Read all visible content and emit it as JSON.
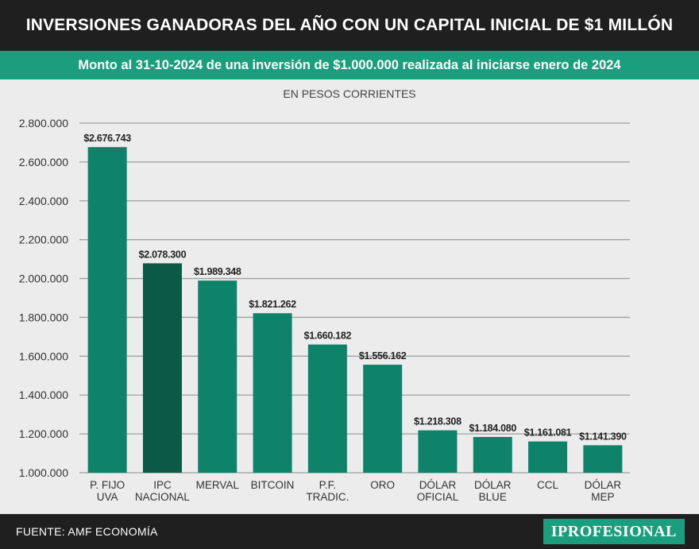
{
  "header": {
    "title": "INVERSIONES GANADORAS DEL AÑO CON UN CAPITAL INICIAL DE $1 MILLÓN",
    "subtitle": "Monto al 31-10-2024 de una inversión de $1.000.000 realizada al iniciarse enero de 2024",
    "unit_label": "EN PESOS CORRIENTES"
  },
  "footer": {
    "source": "FUENTE: AMF ECONOMÍA",
    "brand": "IPROFESIONAL"
  },
  "colors": {
    "bar": "#0f826a",
    "bar_highlight": "#0b5a48",
    "grid": "#a0a0a0",
    "text": "#333333"
  },
  "chart_data": {
    "type": "bar",
    "categories": [
      [
        "P. FIJO",
        "UVA"
      ],
      [
        "IPC",
        "NACIONAL"
      ],
      [
        "MERVAL"
      ],
      [
        "BITCOIN"
      ],
      [
        "P.F.",
        "TRADIC."
      ],
      [
        "ORO"
      ],
      [
        "DÓLAR",
        "OFICIAL"
      ],
      [
        "DÓLAR",
        "BLUE"
      ],
      [
        "CCL"
      ],
      [
        "DÓLAR",
        "MEP"
      ]
    ],
    "values": [
      2676743,
      2078300,
      1989348,
      1821262,
      1660182,
      1556162,
      1218308,
      1184080,
      1161081,
      1141390
    ],
    "data_labels": [
      "$2.676.743",
      "$2.078.300",
      "$1.989.348",
      "$1.821.262",
      "$1.660.182",
      "$1.556.162",
      "$1.218.308",
      "$1.184.080",
      "$1.161.081",
      "$1.141.390"
    ],
    "highlight_index": 1,
    "ylim": [
      1000000,
      2800000
    ],
    "yticks": [
      1000000,
      1200000,
      1400000,
      1600000,
      1800000,
      2000000,
      2200000,
      2400000,
      2600000,
      2800000
    ],
    "ytick_labels": [
      "1.000.000",
      "1.200.000",
      "1.400.000",
      "1.600.000",
      "1.800.000",
      "2.000.000",
      "2.200.000",
      "2.400.000",
      "2.600.000",
      "2.800.000"
    ],
    "grid": true,
    "legend": "none"
  }
}
